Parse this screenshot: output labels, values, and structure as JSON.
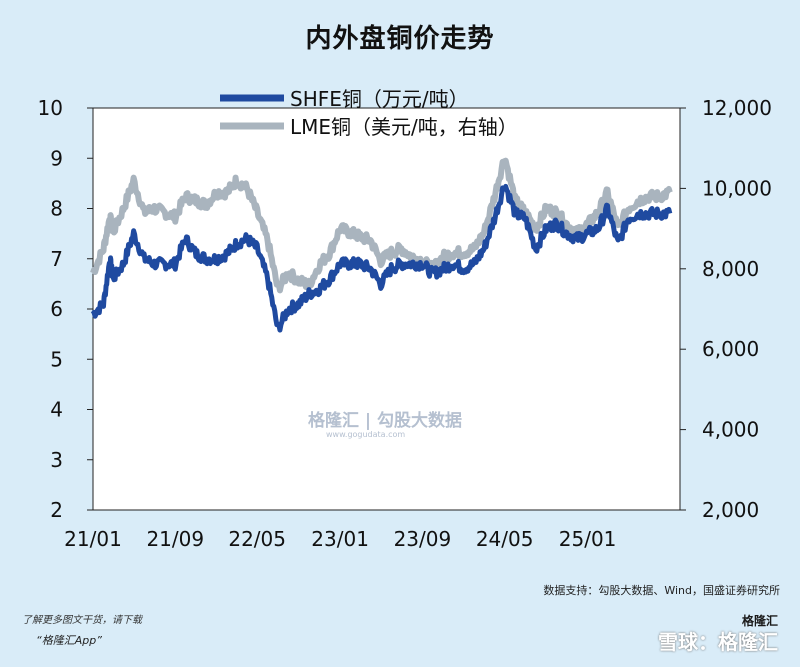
{
  "title": "内外盘铜价走势",
  "source": "数据支持：勾股大数据、Wind，国盛证券研究所",
  "footer": {
    "line1": "了解更多图文干货，请下载",
    "line2": "“格隆汇App”",
    "brand_badge": "格隆汇",
    "watermark_bottom": "雪球：格隆汇"
  },
  "watermark": {
    "main": "格隆汇 | 勾股大数据",
    "sub": "www.gogudata.com"
  },
  "chart_data": {
    "type": "line",
    "title": "内外盘铜价走势",
    "x_ticks": [
      "21/01",
      "21/09",
      "22/05",
      "23/01",
      "23/09",
      "24/05",
      "25/01"
    ],
    "y_left": {
      "min": 2,
      "max": 10,
      "ticks": [
        "2",
        "3",
        "4",
        "5",
        "6",
        "7",
        "8",
        "9",
        "10"
      ]
    },
    "y_right": {
      "min": 2000,
      "max": 12000,
      "ticks": [
        "2,000",
        "4,000",
        "6,000",
        "8,000",
        "10,000",
        "12,000"
      ]
    },
    "legend_position": "top-center",
    "series": [
      {
        "name": "SHFE铜（万元/吨）",
        "axis": "left",
        "color": "#1f4aa0",
        "points": [
          [
            "2021-01",
            5.9
          ],
          [
            "2021-02",
            6.1
          ],
          [
            "2021-02-20",
            7.0
          ],
          [
            "2021-03",
            6.6
          ],
          [
            "2021-04",
            6.9
          ],
          [
            "2021-05",
            7.5
          ],
          [
            "2021-06",
            7.0
          ],
          [
            "2021-07",
            6.9
          ],
          [
            "2021-08",
            6.9
          ],
          [
            "2021-09",
            6.9
          ],
          [
            "2021-10",
            7.4
          ],
          [
            "2021-11",
            7.1
          ],
          [
            "2021-12",
            7.0
          ],
          [
            "2022-01",
            7.0
          ],
          [
            "2022-02",
            7.1
          ],
          [
            "2022-03",
            7.3
          ],
          [
            "2022-04",
            7.4
          ],
          [
            "2022-05",
            7.2
          ],
          [
            "2022-06",
            6.6
          ],
          [
            "2022-07",
            5.6
          ],
          [
            "2022-08",
            6.0
          ],
          [
            "2022-09",
            6.1
          ],
          [
            "2022-10",
            6.3
          ],
          [
            "2022-11",
            6.4
          ],
          [
            "2022-12",
            6.6
          ],
          [
            "2023-01",
            6.9
          ],
          [
            "2023-02",
            6.9
          ],
          [
            "2023-03",
            6.9
          ],
          [
            "2023-04",
            6.8
          ],
          [
            "2023-05",
            6.5
          ],
          [
            "2023-06",
            6.8
          ],
          [
            "2023-07",
            6.9
          ],
          [
            "2023-08",
            6.9
          ],
          [
            "2023-09",
            6.9
          ],
          [
            "2023-10",
            6.7
          ],
          [
            "2023-11",
            6.8
          ],
          [
            "2023-12",
            6.9
          ],
          [
            "2024-01",
            6.8
          ],
          [
            "2024-02",
            6.9
          ],
          [
            "2024-03",
            7.2
          ],
          [
            "2024-04",
            7.8
          ],
          [
            "2024-05",
            8.5
          ],
          [
            "2024-06",
            7.9
          ],
          [
            "2024-07",
            7.8
          ],
          [
            "2024-08",
            7.2
          ],
          [
            "2024-09",
            7.6
          ],
          [
            "2024-10",
            7.7
          ],
          [
            "2024-11",
            7.5
          ],
          [
            "2024-12",
            7.4
          ],
          [
            "2025-01",
            7.5
          ],
          [
            "2025-02",
            7.6
          ],
          [
            "2025-03",
            8.0
          ],
          [
            "2025-04",
            7.3
          ],
          [
            "2025-05",
            7.8
          ],
          [
            "2025-06",
            7.9
          ],
          [
            "2025-07",
            7.9
          ],
          [
            "2025-08",
            7.9
          ],
          [
            "2025-09",
            7.9
          ]
        ]
      },
      {
        "name": "LME铜（美元/吨，右轴）",
        "axis": "right",
        "color": "#a9b4be",
        "points": [
          [
            "2021-01",
            7900
          ],
          [
            "2021-02",
            8500
          ],
          [
            "2021-02-20",
            9300
          ],
          [
            "2021-03",
            8900
          ],
          [
            "2021-04",
            9500
          ],
          [
            "2021-05",
            10200
          ],
          [
            "2021-06",
            9400
          ],
          [
            "2021-07",
            9500
          ],
          [
            "2021-08",
            9400
          ],
          [
            "2021-09",
            9300
          ],
          [
            "2021-10",
            9800
          ],
          [
            "2021-11",
            9700
          ],
          [
            "2021-12",
            9600
          ],
          [
            "2022-01",
            9900
          ],
          [
            "2022-02",
            9900
          ],
          [
            "2022-03",
            10200
          ],
          [
            "2022-04",
            10000
          ],
          [
            "2022-05",
            9400
          ],
          [
            "2022-06",
            8700
          ],
          [
            "2022-07",
            7500
          ],
          [
            "2022-08",
            7900
          ],
          [
            "2022-09",
            7700
          ],
          [
            "2022-10",
            7600
          ],
          [
            "2022-11",
            8100
          ],
          [
            "2022-12",
            8400
          ],
          [
            "2023-01",
            9000
          ],
          [
            "2023-02",
            8900
          ],
          [
            "2023-03",
            8800
          ],
          [
            "2023-04",
            8700
          ],
          [
            "2023-05",
            8200
          ],
          [
            "2023-06",
            8400
          ],
          [
            "2023-07",
            8500
          ],
          [
            "2023-08",
            8300
          ],
          [
            "2023-09",
            8200
          ],
          [
            "2023-10",
            8000
          ],
          [
            "2023-11",
            8300
          ],
          [
            "2023-12",
            8400
          ],
          [
            "2024-01",
            8400
          ],
          [
            "2024-02",
            8500
          ],
          [
            "2024-03",
            8900
          ],
          [
            "2024-04",
            9800
          ],
          [
            "2024-05",
            10800
          ],
          [
            "2024-06",
            9700
          ],
          [
            "2024-07",
            9400
          ],
          [
            "2024-08",
            9000
          ],
          [
            "2024-09",
            9500
          ],
          [
            "2024-10",
            9400
          ],
          [
            "2024-11",
            9100
          ],
          [
            "2024-12",
            8900
          ],
          [
            "2025-01",
            9100
          ],
          [
            "2025-02",
            9400
          ],
          [
            "2025-03",
            9900
          ],
          [
            "2025-04",
            9000
          ],
          [
            "2025-05",
            9500
          ],
          [
            "2025-06",
            9700
          ],
          [
            "2025-07",
            9800
          ],
          [
            "2025-08",
            9800
          ],
          [
            "2025-09",
            9900
          ]
        ]
      }
    ]
  }
}
